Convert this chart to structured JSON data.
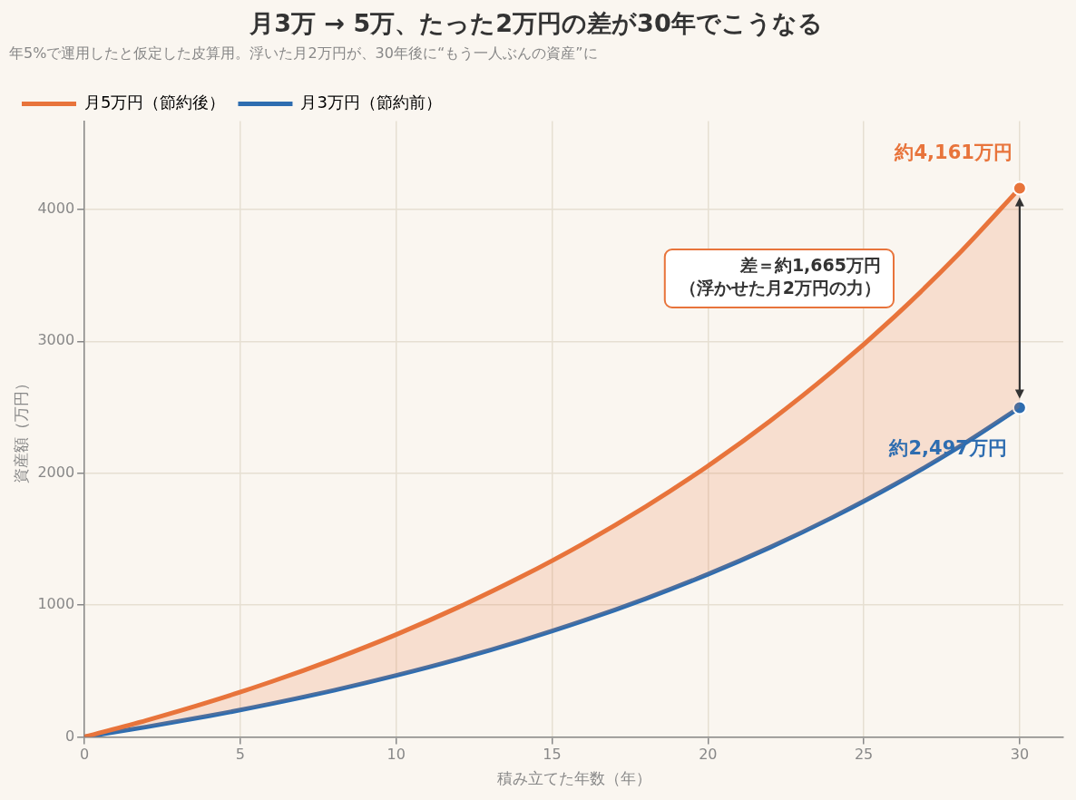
{
  "chart_data": {
    "type": "line",
    "title": "月3万 → 5万、たった2万円の差が30年でこうなる",
    "subtitle": "年5%で運用したと仮定した皮算用。浮いた月2万円が、30年後に“もう一人ぶんの資産”に",
    "xlabel": "積み立てた年数（年）",
    "ylabel": "資産額（万円）",
    "x": [
      0,
      2,
      4,
      6,
      8,
      10,
      12,
      14,
      16,
      18,
      20,
      22,
      24,
      26,
      28,
      30
    ],
    "series": [
      {
        "name": "月5万円（節約後）",
        "color": "#e8743b",
        "values": [
          0,
          126,
          265,
          419,
          589,
          776,
          984,
          1213,
          1466,
          1746,
          2055,
          2397,
          2774,
          3191,
          3652,
          4161
        ]
      },
      {
        "name": "月3万円（節約前）",
        "color": "#2e6db0",
        "values": [
          0,
          76,
          159,
          251,
          353,
          466,
          590,
          728,
          880,
          1048,
          1233,
          1438,
          1665,
          1915,
          2191,
          2497
        ]
      }
    ],
    "xlim": [
      0,
      31.4
    ],
    "xticks": [
      0,
      5,
      10,
      15,
      20,
      25,
      30
    ],
    "ylim": [
      0,
      4670
    ],
    "yticks": [
      0,
      1000,
      2000,
      3000,
      4000
    ],
    "grid": true,
    "legend": "top left",
    "annotations": [
      {
        "text": "約4,161万円",
        "x": 30,
        "y": 4161
      },
      {
        "text": "約2,497万円",
        "x": 30,
        "y": 2497
      },
      "差＝約1,665万円",
      "（浮かせた月2万円の力）"
    ]
  }
}
